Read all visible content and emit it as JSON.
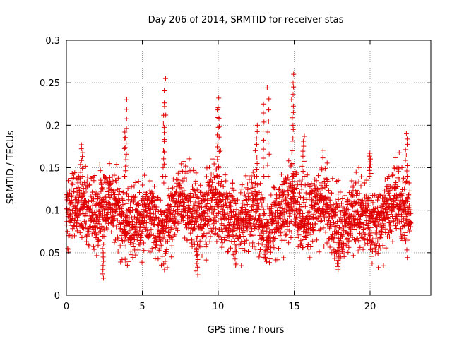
{
  "chart_data": {
    "type": "scatter",
    "title": "Day 206 of 2014, SRMTID for receiver stas",
    "xlabel": "GPS time / hours",
    "ylabel": "SRMTID / TECUs",
    "xlim": [
      0,
      24
    ],
    "ylim": [
      0,
      0.3
    ],
    "xticks": [
      0,
      5,
      10,
      15,
      20
    ],
    "xtick_labels": [
      "0",
      "5",
      "10",
      "15",
      "20"
    ],
    "yticks": [
      0,
      0.05,
      0.1,
      0.15,
      0.2,
      0.25,
      0.3
    ],
    "ytick_labels": [
      "0",
      "0.05",
      "0.1",
      "0.15",
      "0.2",
      "0.25",
      "0.3"
    ],
    "grid": true,
    "marker": "+",
    "color": "#e00000",
    "series": [
      {
        "name": "stas",
        "x_range": [
          0,
          22.7
        ],
        "x_step_hours": 0.0083,
        "typical_band": [
          0.05,
          0.14
        ],
        "peaks": [
          {
            "x": 1.0,
            "y": 0.177
          },
          {
            "x": 2.4,
            "y": 0.02
          },
          {
            "x": 3.9,
            "y": 0.23
          },
          {
            "x": 3.9,
            "y": 0.192
          },
          {
            "x": 6.4,
            "y": 0.222
          },
          {
            "x": 6.5,
            "y": 0.255
          },
          {
            "x": 8.6,
            "y": 0.024
          },
          {
            "x": 10.0,
            "y": 0.232
          },
          {
            "x": 10.0,
            "y": 0.218
          },
          {
            "x": 12.5,
            "y": 0.2
          },
          {
            "x": 13.0,
            "y": 0.225
          },
          {
            "x": 13.3,
            "y": 0.244
          },
          {
            "x": 14.9,
            "y": 0.26
          },
          {
            "x": 14.9,
            "y": 0.25
          },
          {
            "x": 15.6,
            "y": 0.187
          },
          {
            "x": 17.9,
            "y": 0.03
          },
          {
            "x": 20.0,
            "y": 0.167
          },
          {
            "x": 22.4,
            "y": 0.19
          }
        ]
      }
    ]
  }
}
